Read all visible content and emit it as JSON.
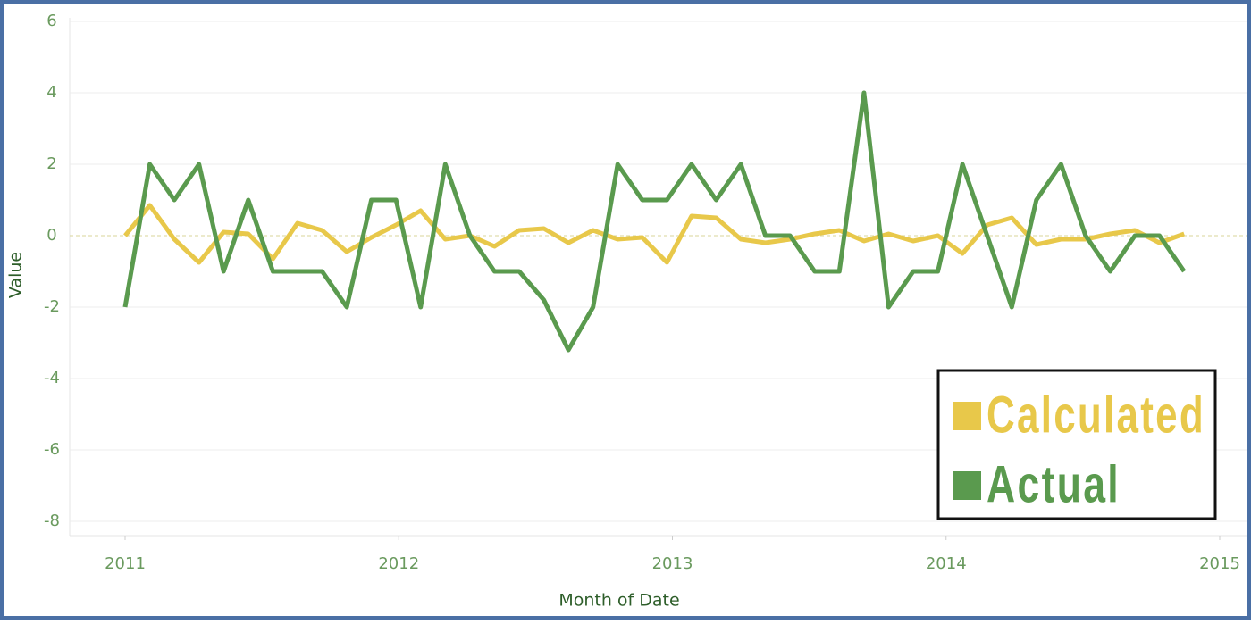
{
  "chart_data": {
    "type": "line",
    "x_label": "Month of Date",
    "y_label": "Value",
    "x": [
      2011,
      2011.09,
      2011.18,
      2011.27,
      2011.36,
      2011.45,
      2011.54,
      2011.63,
      2011.72,
      2011.81,
      2011.9,
      2011.99,
      2012.08,
      2012.17,
      2012.26,
      2012.35,
      2012.44,
      2012.53,
      2012.62,
      2012.71,
      2012.8,
      2012.89,
      2012.98,
      2013.07,
      2013.16,
      2013.25,
      2013.34,
      2013.43,
      2013.52,
      2013.61,
      2013.7,
      2013.79,
      2013.88,
      2013.97,
      2014.06,
      2014.15,
      2014.24,
      2014.33,
      2014.42,
      2014.51,
      2014.6,
      2014.69,
      2014.78,
      2014.87
    ],
    "series": [
      {
        "name": "Calculated",
        "color": "#e8c84a",
        "values": [
          0,
          0.85,
          -0.1,
          -0.75,
          0.1,
          0.05,
          -0.65,
          0.35,
          0.15,
          -0.45,
          -0.05,
          0.3,
          0.7,
          -0.1,
          0,
          -0.3,
          0.15,
          0.2,
          -0.2,
          0.15,
          -0.1,
          -0.05,
          -0.75,
          0.55,
          0.5,
          -0.1,
          -0.2,
          -0.1,
          0.05,
          0.15,
          -0.15,
          0.05,
          -0.15,
          0,
          -0.5,
          0.3,
          0.5,
          -0.25,
          -0.1,
          -0.1,
          0.05,
          0.15,
          -0.2,
          0.05
        ]
      },
      {
        "name": "Actual",
        "color": "#5a9a4e",
        "values": [
          -2,
          2,
          1,
          2,
          -1,
          1,
          -1,
          -1,
          -1,
          -2,
          1,
          1,
          -2,
          2,
          0,
          -1,
          -1,
          -1.8,
          -3.2,
          -2,
          2,
          1,
          1,
          2,
          1,
          2,
          0,
          0,
          -1,
          -1,
          4,
          -2,
          -1,
          -1,
          2,
          0,
          -2,
          1,
          2,
          0,
          -1,
          0,
          0,
          -1
        ]
      }
    ],
    "xlim": [
      2011,
      2015
    ],
    "xticks": [
      2011,
      2012,
      2013,
      2014,
      2015
    ],
    "ylim": [
      -8.4,
      6.1
    ],
    "yticks": [
      -8,
      -6,
      -4,
      -2,
      0,
      2,
      4,
      6
    ],
    "grid": true,
    "legend": "lower right"
  }
}
